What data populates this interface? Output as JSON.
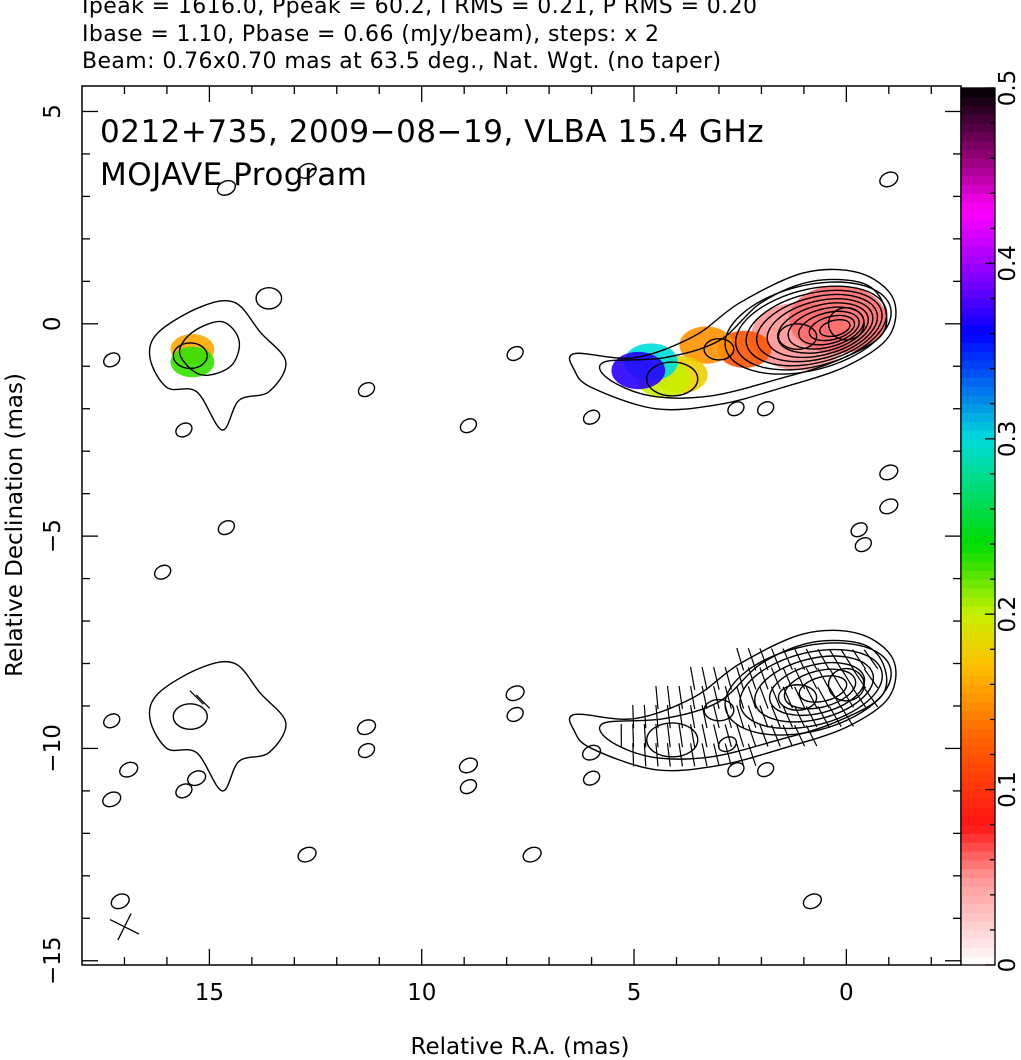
{
  "header": {
    "line1": "Ipeak = 1616.0, Ppeak = 60.2, I RMS = 0.21, P RMS = 0.20",
    "line2": "Ibase = 1.10, Pbase = 0.66 (mJy/beam), steps: x 2",
    "line3": "Beam: 0.76x0.70 mas at 63.5 deg., Nat. Wgt. (no taper)"
  },
  "chart_data": {
    "type": "heatmap",
    "annotation_line1": "0212+735, 2009−08−19, VLBA 15.4 GHz",
    "annotation_line2": "MOJAVE Program",
    "xlabel": "Relative R.A. (mas)",
    "ylabel": "Relative Declination (mas)",
    "xlim": [
      18.0,
      -2.7
    ],
    "ylim": [
      -15.1,
      5.6
    ],
    "x_ticks": [
      15,
      10,
      5,
      0
    ],
    "x_tick_labels": [
      "15",
      "10",
      "5",
      "0"
    ],
    "y_ticks": [
      5,
      0,
      -5,
      -10,
      -15
    ],
    "y_tick_labels": [
      "5",
      "0",
      "−5",
      "−10",
      "−15"
    ],
    "colorbar": {
      "range": [
        0,
        0.5
      ],
      "ticks": [
        0,
        0.1,
        0.2,
        0.3,
        0.4,
        0.5
      ],
      "tick_labels": [
        "0",
        "0.1",
        "0.2",
        "0.3",
        "0.4",
        "0.5"
      ]
    },
    "grid": false,
    "beam": {
      "major_mas": 0.76,
      "minor_mas": 0.7,
      "pa_deg": 63.5
    },
    "panels": [
      {
        "name": "fractional polarization over total intensity",
        "image_map": [
          {
            "x": 1.1,
            "y": -0.3,
            "value": 0.05
          },
          {
            "x": 0.2,
            "y": 0.1,
            "value": 0.06
          },
          {
            "x": 2.4,
            "y": -0.6,
            "value": 0.12
          },
          {
            "x": 3.3,
            "y": -0.5,
            "value": 0.15
          },
          {
            "x": 3.9,
            "y": -1.2,
            "value": 0.18
          },
          {
            "x": 4.3,
            "y": -1.3,
            "value": 0.2
          },
          {
            "x": 4.6,
            "y": -0.9,
            "value": 0.3
          },
          {
            "x": 4.9,
            "y": -1.1,
            "value": 0.37
          },
          {
            "x": 15.4,
            "y": -0.6,
            "value": 0.16
          },
          {
            "x": 15.4,
            "y": -0.9,
            "value": 0.23
          }
        ]
      },
      {
        "name": "total intensity with polarization vectors",
        "offset_dec_mas": -8.5
      }
    ]
  }
}
